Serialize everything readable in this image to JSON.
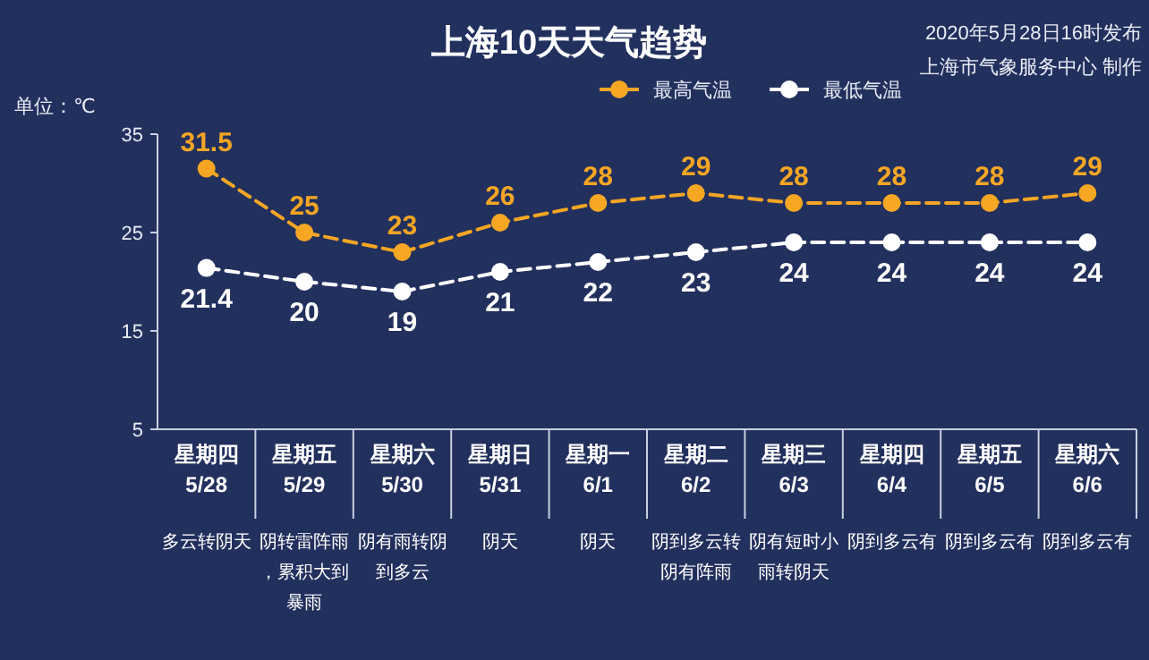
{
  "chart_data": {
    "type": "line",
    "title": "上海10天天气趋势",
    "ylabel": "单位：℃",
    "annotations": [
      "2020年5月28日16时发布",
      "上海市气象服务中心 制作"
    ],
    "categories": [
      "星期四\n5/28\n多云转阴天",
      "星期五\n5/29\n阴转雷阵雨，累积大到暴雨",
      "星期六\n5/30\n阴有雨转阴到多云",
      "星期日\n5/31\n阴天",
      "星期一\n6/1\n阴天",
      "星期二\n6/2\n阴到多云转阴有阵雨",
      "星期三\n6/3\n阴有短时小雨转阴天",
      "星期四\n6/4\n阴到多云有",
      "星期五\n6/5\n阴到多云有",
      "星期六\n6/6\n阴到多云有"
    ],
    "series": [
      {
        "name": "最高气温",
        "color": "#f5a623",
        "values": [
          31.5,
          25,
          23,
          26,
          28,
          29,
          28,
          28,
          28,
          29
        ]
      },
      {
        "name": "最低气温",
        "color": "#ffffff",
        "values": [
          21.4,
          20,
          19,
          21,
          22,
          23,
          24,
          24,
          24,
          24
        ]
      }
    ],
    "ylim": [
      5,
      35
    ],
    "yticks": [
      5,
      15,
      25,
      35
    ],
    "data_labels": true,
    "legend": "top",
    "marker": "circle",
    "line_style": "dashed"
  }
}
